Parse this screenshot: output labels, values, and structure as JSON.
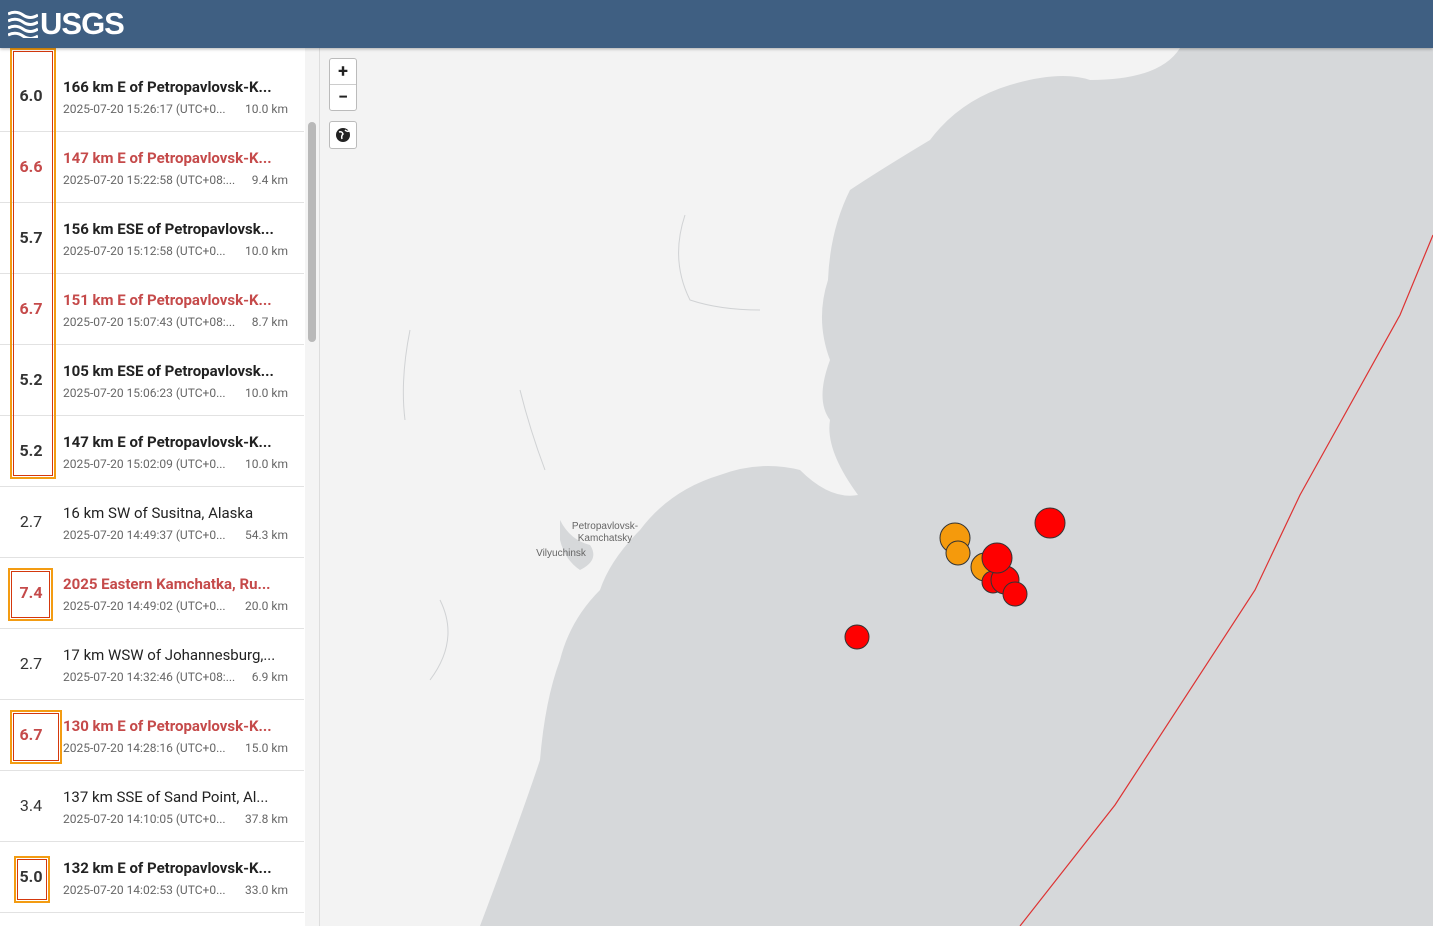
{
  "header": {
    "logo": "USGS"
  },
  "list": {
    "items": [
      {
        "mag": "6.0",
        "title": "166 km E of Petropavlovsk-K...",
        "time": "2025-07-20 15:26:17 (UTC+0...",
        "depth": "10.0 km"
      },
      {
        "mag": "6.6",
        "title": "147 km E of Petropavlovsk-K...",
        "time": "2025-07-20 15:22:58 (UTC+08:...",
        "depth": "9.4 km"
      },
      {
        "mag": "5.7",
        "title": "156 km ESE of Petropavlovsk...",
        "time": "2025-07-20 15:12:58 (UTC+0...",
        "depth": "10.0 km"
      },
      {
        "mag": "6.7",
        "title": "151 km E of Petropavlovsk-K...",
        "time": "2025-07-20 15:07:43 (UTC+08:...",
        "depth": "8.7 km"
      },
      {
        "mag": "5.2",
        "title": "105 km ESE of Petropavlovsk...",
        "time": "2025-07-20 15:06:23 (UTC+0...",
        "depth": "10.0 km"
      },
      {
        "mag": "5.2",
        "title": "147 km E of Petropavlovsk-K...",
        "time": "2025-07-20 15:02:09 (UTC+0...",
        "depth": "10.0 km"
      },
      {
        "mag": "2.7",
        "title": "16 km SW of Susitna, Alaska",
        "time": "2025-07-20 14:49:37 (UTC+0...",
        "depth": "54.3 km"
      },
      {
        "mag": "7.4",
        "title": "2025 Eastern Kamchatka, Ru...",
        "time": "2025-07-20 14:49:02 (UTC+0...",
        "depth": "20.0 km"
      },
      {
        "mag": "2.7",
        "title": "17 km WSW of Johannesburg,...",
        "time": "2025-07-20 14:32:46 (UTC+08:...",
        "depth": "6.9 km"
      },
      {
        "mag": "6.7",
        "title": "130 km E of Petropavlovsk-K...",
        "time": "2025-07-20 14:28:16 (UTC+0...",
        "depth": "15.0 km"
      },
      {
        "mag": "3.4",
        "title": "137 km SSE of Sand Point, Al...",
        "time": "2025-07-20 14:10:05 (UTC+0...",
        "depth": "37.8 km"
      },
      {
        "mag": "5.0",
        "title": "132 km E of Petropavlovsk-K...",
        "time": "2025-07-20 14:02:53 (UTC+0...",
        "depth": "33.0 km"
      }
    ]
  },
  "map": {
    "zoom_in": "+",
    "zoom_out": "−",
    "labels": [
      "Petropavlovsk-",
      "Kamchatsky",
      "Vilyuchinsk"
    ]
  }
}
